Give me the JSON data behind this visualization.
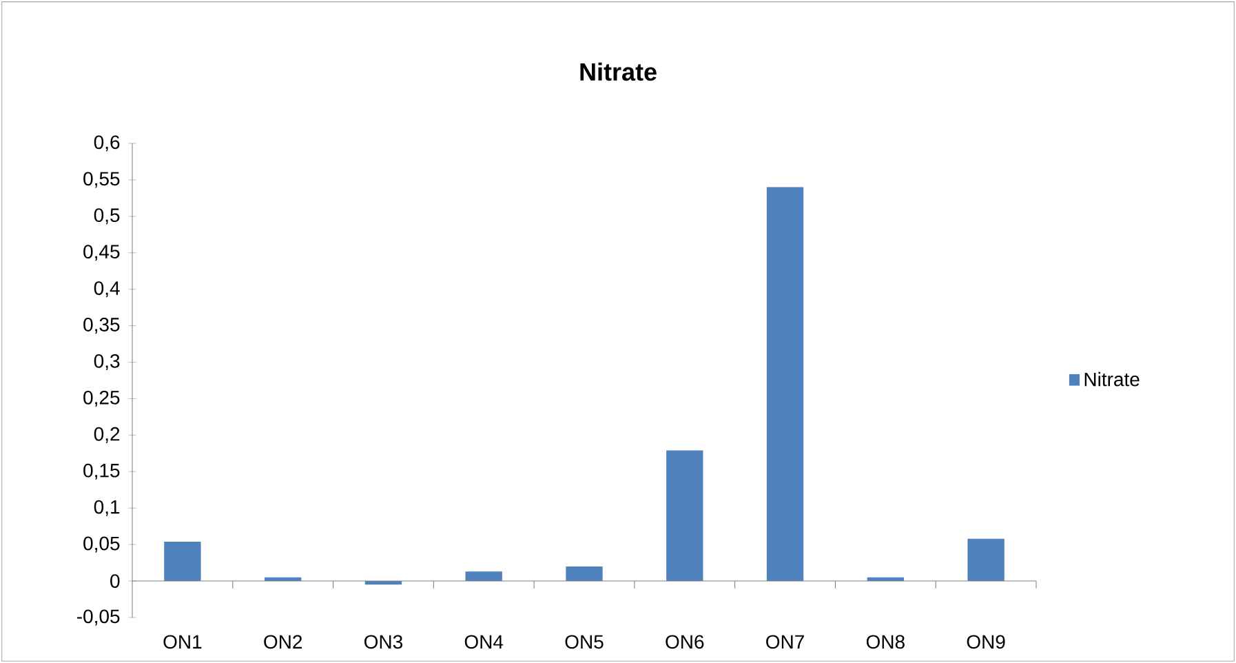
{
  "chart_data": {
    "type": "bar",
    "title": "Nitrate",
    "categories": [
      "ON1",
      "ON2",
      "ON3",
      "ON4",
      "ON5",
      "ON6",
      "ON7",
      "ON8",
      "ON9"
    ],
    "series": [
      {
        "name": "Nitrate",
        "color": "#4f81bd",
        "values": [
          0.054,
          0.005,
          -0.005,
          0.013,
          0.02,
          0.179,
          0.54,
          0.005,
          0.058
        ]
      }
    ],
    "ylim": [
      -0.05,
      0.6
    ],
    "yticks": [
      {
        "value": -0.05,
        "label": "-0,05"
      },
      {
        "value": 0,
        "label": "0"
      },
      {
        "value": 0.05,
        "label": "0,05"
      },
      {
        "value": 0.1,
        "label": "0,1"
      },
      {
        "value": 0.15,
        "label": "0,15"
      },
      {
        "value": 0.2,
        "label": "0,2"
      },
      {
        "value": 0.25,
        "label": "0,25"
      },
      {
        "value": 0.3,
        "label": "0,3"
      },
      {
        "value": 0.35,
        "label": "0,35"
      },
      {
        "value": 0.4,
        "label": "0,4"
      },
      {
        "value": 0.45,
        "label": "0,45"
      },
      {
        "value": 0.5,
        "label": "0,5"
      },
      {
        "value": 0.55,
        "label": "0,55"
      },
      {
        "value": 0.6,
        "label": "0,6"
      }
    ],
    "legend": "right"
  }
}
